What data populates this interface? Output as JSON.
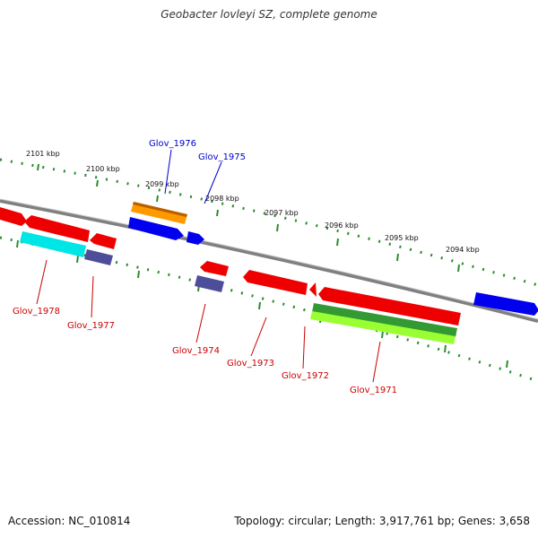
{
  "title": "Geobacter lovleyi SZ, complete genome",
  "footer": {
    "accession": "Accession: NC_010814",
    "topology": "Topology: circular; Length: 3,917,761 bp; Genes: 3,658"
  },
  "colors": {
    "backbone": "#8a8a8a",
    "ruler": "#2e8b2e",
    "forward_label": "#0000cc",
    "reverse_label": "#cc0000",
    "gene_red": "#ee0000",
    "gene_blue": "#0000ee",
    "gene_orange": "#ff9900",
    "gene_cyan": "#00e5e5",
    "gene_purple": "#4d4d99",
    "gene_green": "#339933",
    "gene_lime": "#99ff33"
  },
  "ruler_ticks": [
    {
      "label": "2101 kbp"
    },
    {
      "label": "2100 kbp"
    },
    {
      "label": "2099 kbp"
    },
    {
      "label": "2098 kbp"
    },
    {
      "label": "2097 kbp"
    },
    {
      "label": "2096 kbp"
    },
    {
      "label": "2095 kbp"
    },
    {
      "label": "2094 kbp"
    }
  ],
  "gene_labels": {
    "glov_1976": "Glov_1976",
    "glov_1975": "Glov_1975",
    "glov_1978": "Glov_1978",
    "glov_1977": "Glov_1977",
    "glov_1974": "Glov_1974",
    "glov_1973": "Glov_1973",
    "glov_1972": "Glov_1972",
    "glov_1971": "Glov_1971"
  }
}
